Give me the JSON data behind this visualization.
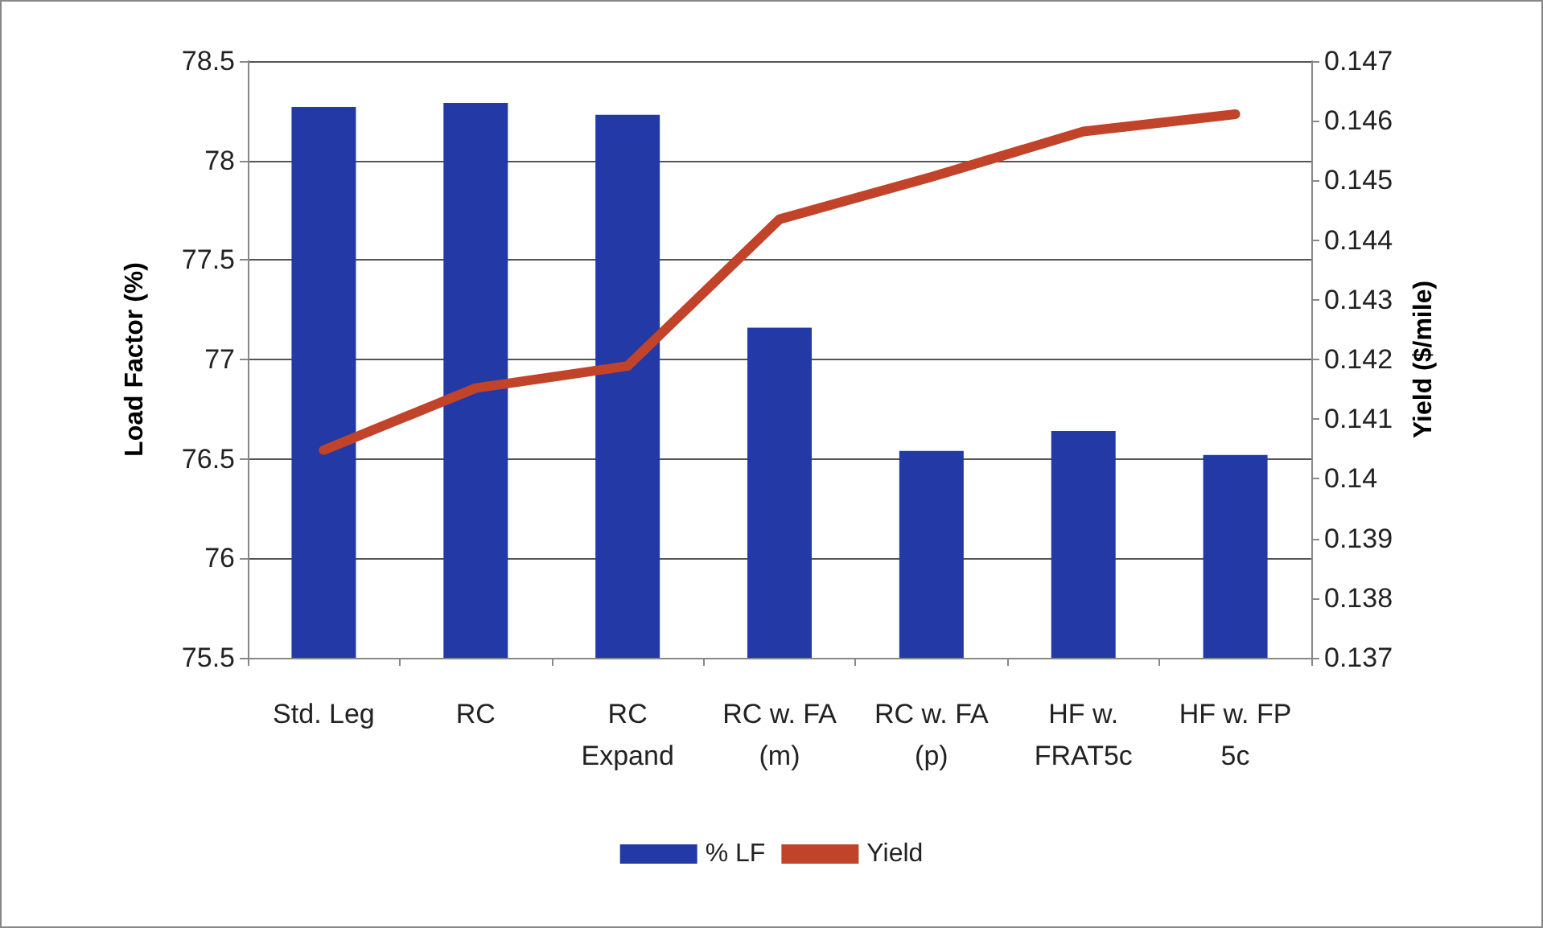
{
  "chart_data": {
    "type": "bar",
    "categories": [
      "Std. Leg",
      "RC",
      "RC\nExpand",
      "RC w. FA\n(m)",
      "RC w. FA\n(p)",
      "HF w.\nFRAT5c",
      "HF w. FP\n5c"
    ],
    "ylabel": "Load Factor (%)",
    "y2label": "Yield ($/mile)",
    "series": [
      {
        "name": "% LF",
        "color": "#2339a6",
        "values": [
          78.27,
          78.29,
          78.23,
          77.16,
          76.54,
          76.64,
          76.52
        ]
      },
      {
        "name": "Yield",
        "type": "line",
        "axis": "y2",
        "color": "#c0432a",
        "values": [
          0.14048,
          0.14152,
          0.14189,
          0.14435,
          0.14506,
          0.14582,
          0.14611
        ]
      }
    ],
    "ylim": [
      75.5,
      78.5
    ],
    "yticks": [
      75.5,
      76,
      76.5,
      77,
      77.5,
      78,
      78.5
    ],
    "y2lim": [
      0.137,
      0.147
    ],
    "y2ticks": [
      0.137,
      0.138,
      0.139,
      0.14,
      0.141,
      0.142,
      0.143,
      0.144,
      0.145,
      0.146,
      0.147
    ],
    "grid": "y",
    "legend": "bottom",
    "marker": "none",
    "line_style": "solid"
  }
}
